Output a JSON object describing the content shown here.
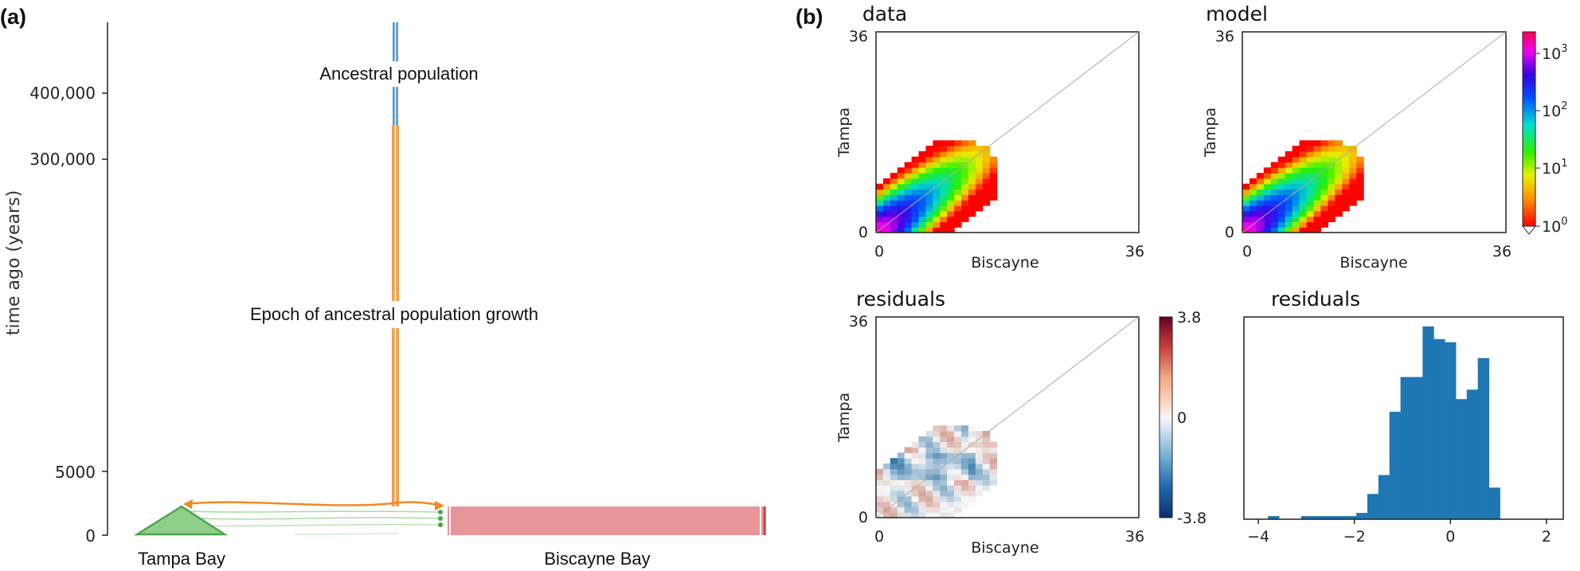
{
  "chart_data": [
    {
      "type": "demographic-model",
      "panel_label": "(a)",
      "ylabel": "time ago (years)",
      "yticks": [
        "400,000",
        "300,000",
        "5000",
        "0"
      ],
      "populations": [
        {
          "name": "Tampa Bay",
          "color": "#7fc97f"
        },
        {
          "name": "Biscayne Bay",
          "color": "#e8898d"
        },
        {
          "name": "ancestral",
          "color": "#5b9bd5"
        },
        {
          "name": "growth",
          "color": "#f0a04a"
        }
      ],
      "annotations": [
        "Ancestral population",
        "Epoch of ancestral population growth"
      ],
      "colors": {
        "tampa": "#8fcf8a",
        "tampa_edge": "#4aa64a",
        "biscayne": "#e8959a",
        "biscayne_edge": "#d23b3b",
        "ancestral": "#5b9bd5",
        "growth": "#f0a04a",
        "migration": "#f08a24"
      }
    },
    {
      "type": "heatmap",
      "panel_label": "(b)",
      "title": "data",
      "xlabel": "Biscayne",
      "ylabel": "Tampa",
      "xticks": [
        "0",
        "36"
      ],
      "yticks": [
        "0",
        "36"
      ],
      "xlim": [
        0,
        36
      ],
      "ylim": [
        0,
        36
      ]
    },
    {
      "type": "heatmap",
      "title": "model",
      "xlabel": "Biscayne",
      "ylabel": "Tampa",
      "xticks": [
        "0",
        "36"
      ],
      "yticks": [
        "0",
        "36"
      ],
      "colorbar": {
        "scale": "log",
        "labels": [
          "10",
          "10",
          "10",
          "10"
        ],
        "exponents": [
          "3",
          "2",
          "1",
          "0"
        ]
      }
    },
    {
      "type": "heatmap",
      "title": "residuals",
      "xlabel": "Biscayne",
      "ylabel": "Tampa",
      "xticks": [
        "0",
        "36"
      ],
      "yticks": [
        "0",
        "36"
      ],
      "colorbar": {
        "labels": [
          "3.8",
          "0",
          "-3.8"
        ],
        "range": [
          -3.8,
          3.8
        ]
      }
    },
    {
      "type": "bar",
      "title": "residuals",
      "xticks": [
        "−4",
        "−2",
        "0",
        "2"
      ],
      "bin_edges": [
        -3.8,
        -3.57,
        -3.34,
        -3.11,
        -2.88,
        -2.65,
        -2.42,
        -2.19,
        -1.96,
        -1.73,
        -1.5,
        -1.27,
        -1.04,
        -0.81,
        -0.58,
        -0.35,
        -0.12,
        0.11,
        0.34,
        0.57,
        0.8,
        1.03,
        1.26,
        1.49,
        1.72,
        1.95
      ],
      "values": [
        1,
        0,
        0,
        1,
        1,
        1,
        1,
        1,
        2,
        8,
        14,
        34,
        45,
        45,
        61,
        57,
        56,
        38,
        41,
        51,
        10,
        0,
        0,
        0,
        0
      ],
      "ylim": [
        0,
        64
      ],
      "color": "#1f77b4"
    }
  ]
}
